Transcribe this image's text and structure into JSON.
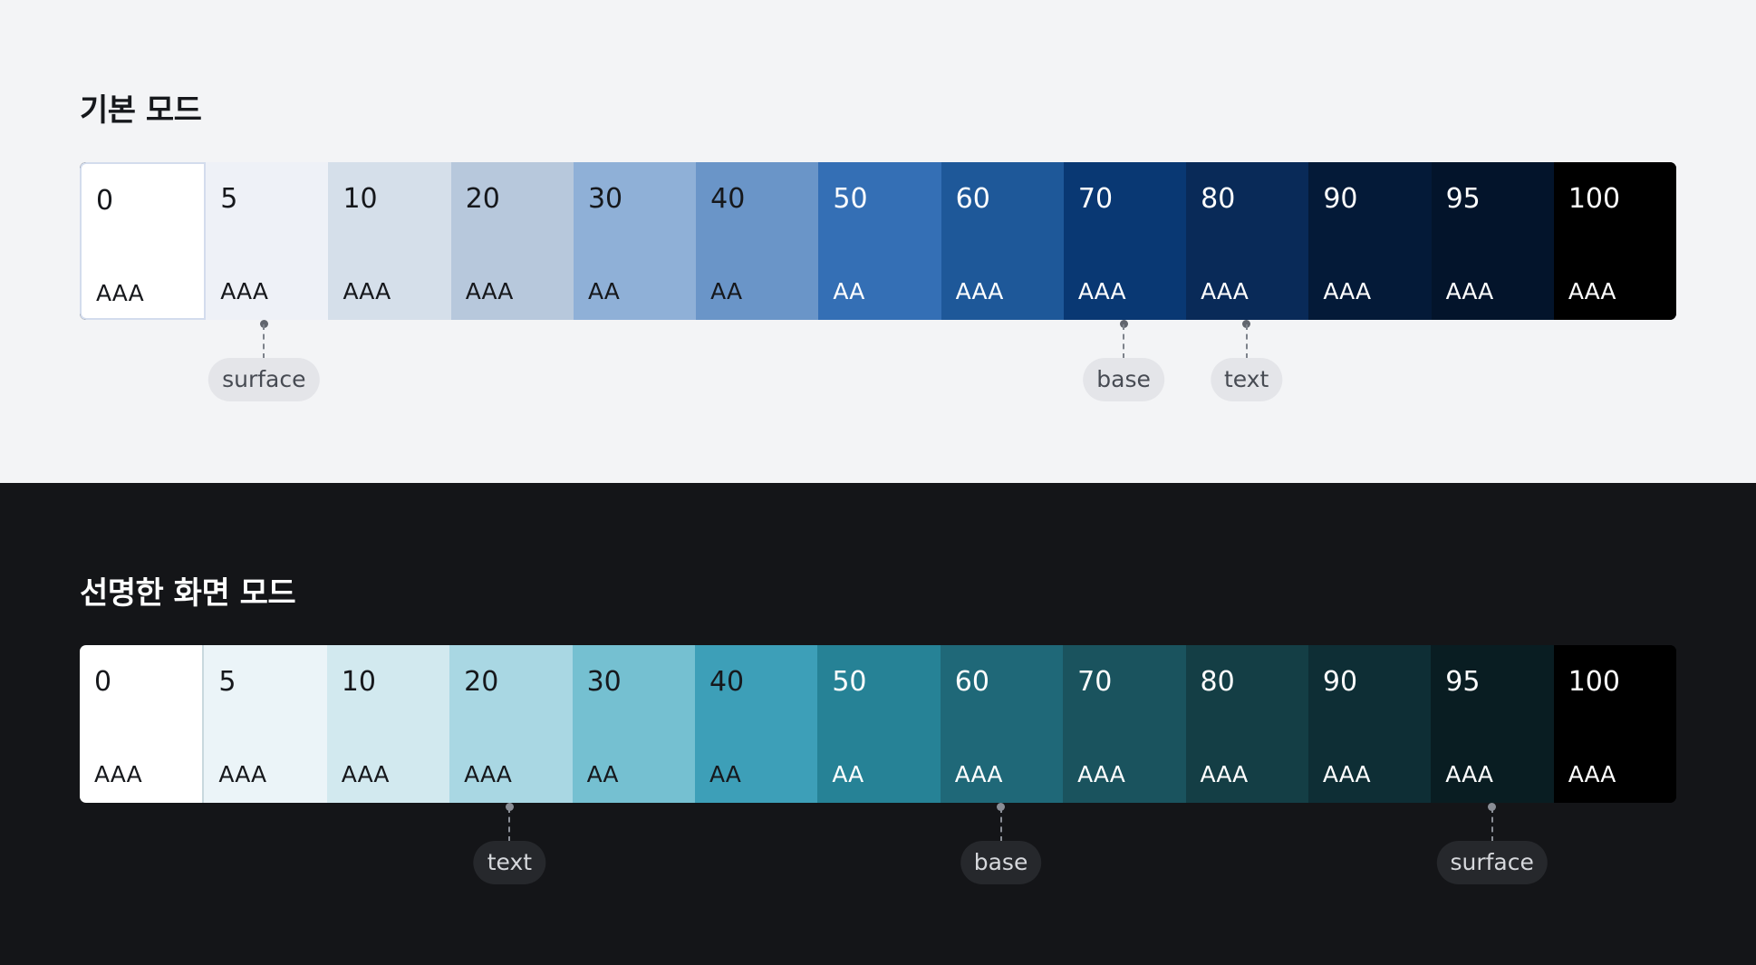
{
  "default_mode": {
    "title": "기본 모드",
    "swatches": [
      {
        "step": "0",
        "grade": "AAA",
        "color": "#ffffff",
        "text": "#16181c"
      },
      {
        "step": "5",
        "grade": "AAA",
        "color": "#eef1f7",
        "text": "#16181c"
      },
      {
        "step": "10",
        "grade": "AAA",
        "color": "#d5dfea",
        "text": "#16181c"
      },
      {
        "step": "20",
        "grade": "AAA",
        "color": "#b7c8dc",
        "text": "#16181c"
      },
      {
        "step": "30",
        "grade": "AA",
        "color": "#8fb0d7",
        "text": "#16181c"
      },
      {
        "step": "40",
        "grade": "AA",
        "color": "#6a95c8",
        "text": "#16181c"
      },
      {
        "step": "50",
        "grade": "AA",
        "color": "#346fb5",
        "text": "#ffffff"
      },
      {
        "step": "60",
        "grade": "AAA",
        "color": "#1e5899",
        "text": "#ffffff"
      },
      {
        "step": "70",
        "grade": "AAA",
        "color": "#093873",
        "text": "#ffffff"
      },
      {
        "step": "80",
        "grade": "AAA",
        "color": "#092a58",
        "text": "#ffffff"
      },
      {
        "step": "90",
        "grade": "AAA",
        "color": "#041a38",
        "text": "#ffffff"
      },
      {
        "step": "95",
        "grade": "AAA",
        "color": "#03142b",
        "text": "#ffffff"
      },
      {
        "step": "100",
        "grade": "AAA",
        "color": "#000000",
        "text": "#ffffff"
      }
    ],
    "markers": [
      {
        "label": "surface",
        "step_index": 1
      },
      {
        "label": "base",
        "step_index": 8
      },
      {
        "label": "text",
        "step_index": 9
      }
    ]
  },
  "high_contrast_mode": {
    "title": "선명한 화면 모드",
    "swatches": [
      {
        "step": "0",
        "grade": "AAA",
        "color": "#ffffff",
        "text": "#16181c"
      },
      {
        "step": "5",
        "grade": "AAA",
        "color": "#ebf4f8",
        "text": "#16181c"
      },
      {
        "step": "10",
        "grade": "AAA",
        "color": "#d2e9ef",
        "text": "#16181c"
      },
      {
        "step": "20",
        "grade": "AAA",
        "color": "#a9d7e3",
        "text": "#16181c"
      },
      {
        "step": "30",
        "grade": "AA",
        "color": "#75c0d1",
        "text": "#16181c"
      },
      {
        "step": "40",
        "grade": "AA",
        "color": "#3d9fb8",
        "text": "#16181c"
      },
      {
        "step": "50",
        "grade": "AA",
        "color": "#268296",
        "text": "#ffffff"
      },
      {
        "step": "60",
        "grade": "AAA",
        "color": "#1f6878",
        "text": "#ffffff"
      },
      {
        "step": "70",
        "grade": "AAA",
        "color": "#1a535e",
        "text": "#ffffff"
      },
      {
        "step": "80",
        "grade": "AAA",
        "color": "#143e45",
        "text": "#ffffff"
      },
      {
        "step": "90",
        "grade": "AAA",
        "color": "#0e2e35",
        "text": "#ffffff"
      },
      {
        "step": "95",
        "grade": "AAA",
        "color": "#091d22",
        "text": "#ffffff"
      },
      {
        "step": "100",
        "grade": "AAA",
        "color": "#000000",
        "text": "#ffffff"
      }
    ],
    "markers": [
      {
        "label": "text",
        "step_index": 3
      },
      {
        "label": "base",
        "step_index": 7
      },
      {
        "label": "surface",
        "step_index": 11
      }
    ]
  }
}
